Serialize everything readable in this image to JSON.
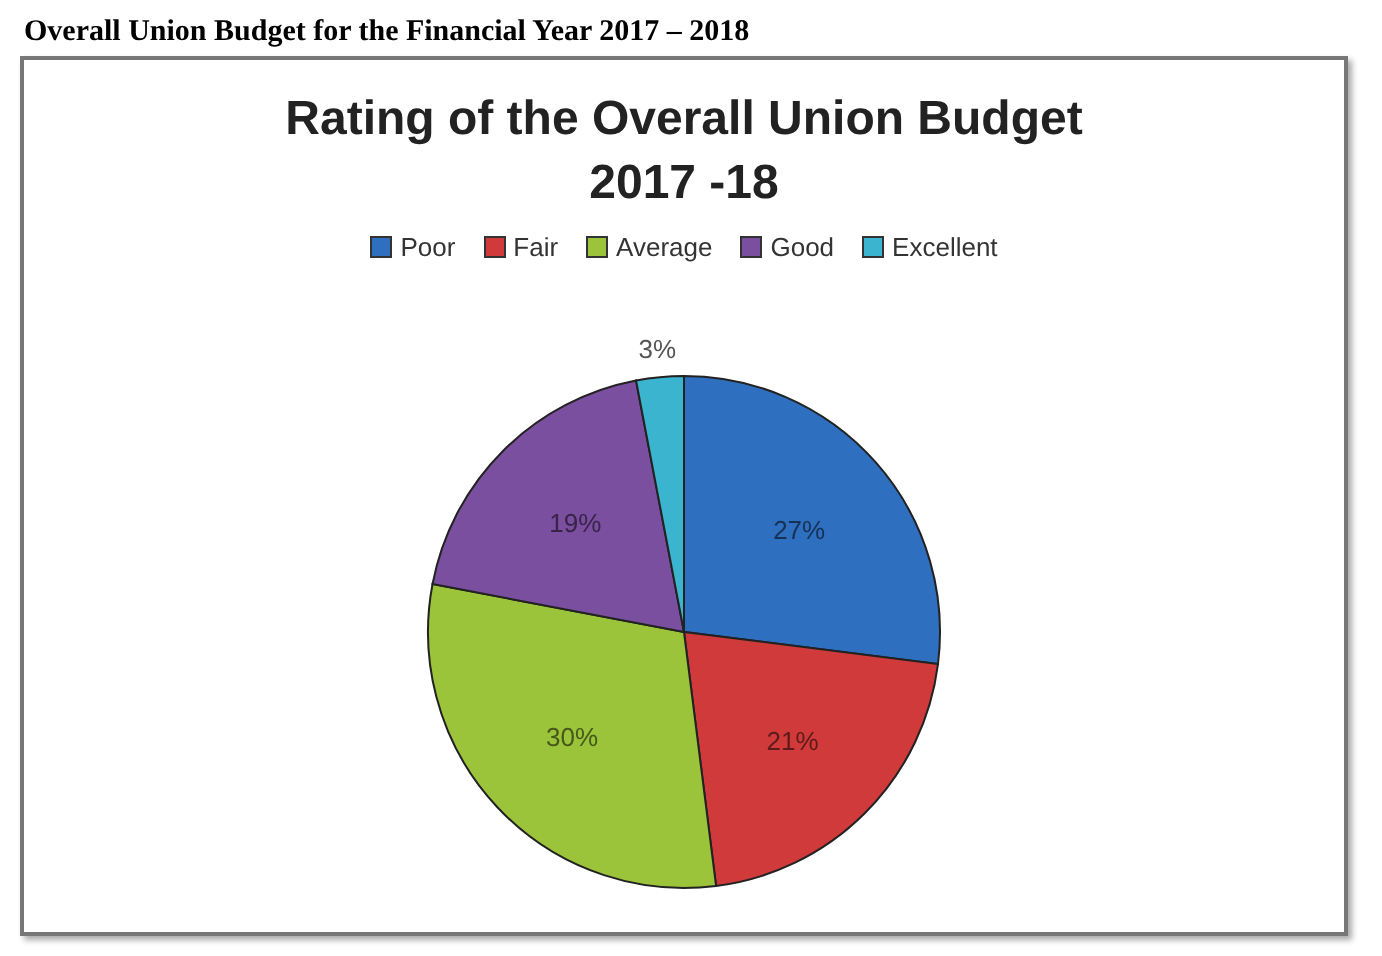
{
  "chart_data": {
    "type": "pie",
    "title": "Rating of the Overall Union Budget 2017 -18",
    "annotations": [
      "Overall Union Budget for the Financial Year 2017 – 2018"
    ],
    "categories": [
      "Poor",
      "Fair",
      "Average",
      "Good",
      "Excellent"
    ],
    "values": [
      27,
      21,
      30,
      19,
      3
    ],
    "colors": [
      "#2f6fbf",
      "#d03a3a",
      "#9bc43a",
      "#7a4fa0",
      "#3bb5cf"
    ],
    "value_labels": [
      "27%",
      "21%",
      "30%",
      "19%",
      "3%"
    ],
    "legend": "top"
  }
}
